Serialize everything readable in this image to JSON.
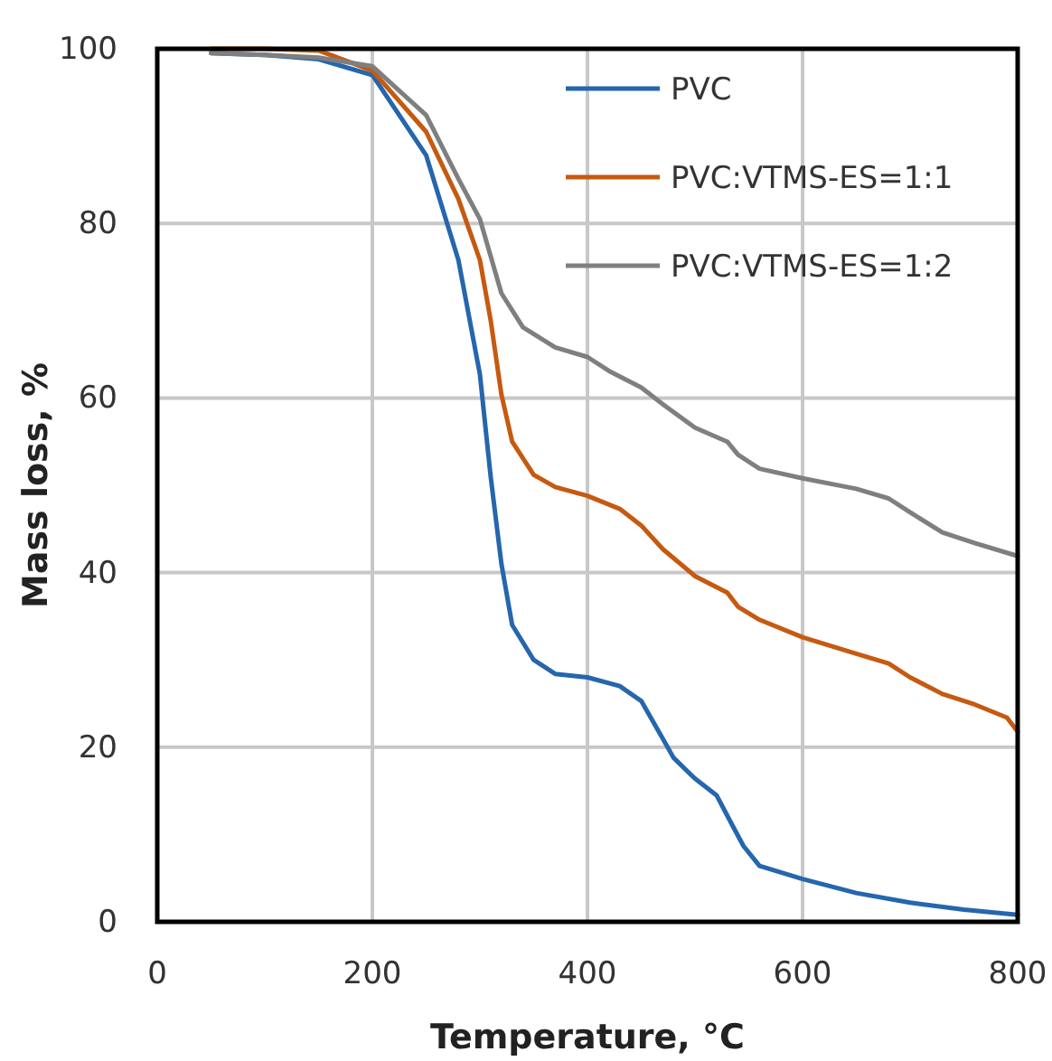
{
  "chart_data": {
    "type": "line",
    "xlabel": "Temperature, °C",
    "ylabel": "Mass loss, %",
    "xlim": [
      0,
      800
    ],
    "xticks": [
      0,
      200,
      400,
      600,
      800
    ],
    "ylim": [
      0,
      100
    ],
    "yticks": [
      0,
      20,
      40,
      60,
      80,
      100
    ],
    "grid": true,
    "legend": "top right",
    "line_style": "solid",
    "marker": "none",
    "series": [
      {
        "name": "PVC",
        "color": "#2566ad",
        "x": [
          50,
          100,
          150,
          200,
          250,
          280,
          300,
          310,
          320,
          330,
          350,
          370,
          400,
          430,
          450,
          470,
          480,
          500,
          520,
          535,
          545,
          560,
          600,
          650,
          700,
          750,
          800
        ],
        "values": [
          99.5,
          99.3,
          98.8,
          97,
          87.8,
          75.8,
          62.7,
          51,
          41,
          34,
          30,
          28.4,
          28,
          27,
          25.3,
          21,
          18.8,
          16.4,
          14.5,
          11,
          8.7,
          6.4,
          4.9,
          3.3,
          2.2,
          1.4,
          0.8
        ]
      },
      {
        "name": "PVC:VTMS-ES=1:1",
        "color": "#c55a11",
        "x": [
          50,
          100,
          150,
          200,
          250,
          280,
          300,
          310,
          320,
          330,
          350,
          370,
          400,
          430,
          450,
          470,
          500,
          530,
          540,
          560,
          600,
          650,
          680,
          700,
          730,
          760,
          790,
          800
        ],
        "values": [
          100,
          100,
          99.8,
          97.5,
          90.5,
          82.8,
          75.8,
          68.9,
          60.4,
          55,
          51.2,
          49.8,
          48.8,
          47.3,
          45.4,
          42.7,
          39.6,
          37.7,
          36.1,
          34.6,
          32.6,
          30.7,
          29.6,
          28,
          26.1,
          24.9,
          23.4,
          21.8
        ]
      },
      {
        "name": "PVC:VTMS-ES=1:2",
        "color": "#7f7f7f",
        "x": [
          50,
          100,
          150,
          200,
          250,
          280,
          300,
          320,
          340,
          370,
          400,
          420,
          450,
          470,
          500,
          530,
          540,
          560,
          600,
          650,
          680,
          700,
          730,
          760,
          800
        ],
        "values": [
          99.5,
          99.3,
          99,
          98,
          92.4,
          85.1,
          80.5,
          72,
          68.1,
          65.8,
          64.7,
          63.1,
          61.2,
          59.3,
          56.6,
          55,
          53.5,
          51.9,
          50.8,
          49.6,
          48.5,
          46.9,
          44.6,
          43.4,
          41.9
        ]
      }
    ]
  }
}
